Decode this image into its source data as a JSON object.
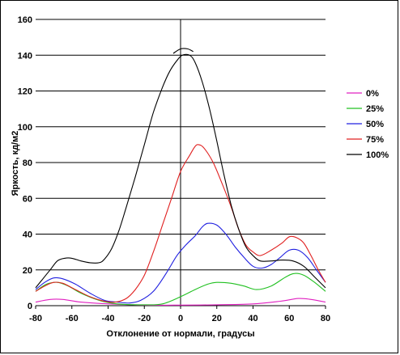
{
  "chart_data": {
    "type": "line",
    "title": "",
    "xlabel": "Отклонение от нормали, градусы",
    "ylabel": "Яркость, кд/м2",
    "xlim": [
      -80,
      80
    ],
    "ylim": [
      0,
      160
    ],
    "xticks": [
      -80,
      -60,
      -40,
      -20,
      0,
      20,
      40,
      60,
      80
    ],
    "yticks": [
      0,
      20,
      40,
      60,
      80,
      100,
      120,
      140,
      160
    ],
    "grid": "horizontal",
    "legend_position": "right",
    "series": [
      {
        "name": "0%",
        "color": "#e020c0",
        "points": [
          [
            -80,
            2
          ],
          [
            -72,
            3.5
          ],
          [
            -65,
            3.5
          ],
          [
            -55,
            2
          ],
          [
            -40,
            1
          ],
          [
            -20,
            0.3
          ],
          [
            0,
            0.3
          ],
          [
            20,
            0.5
          ],
          [
            40,
            1
          ],
          [
            55,
            2.5
          ],
          [
            65,
            4
          ],
          [
            72,
            3.5
          ],
          [
            80,
            2
          ]
        ]
      },
      {
        "name": "25%",
        "color": "#20c020",
        "points": [
          [
            -80,
            8
          ],
          [
            -74,
            12
          ],
          [
            -68,
            13
          ],
          [
            -62,
            11
          ],
          [
            -55,
            7
          ],
          [
            -45,
            3
          ],
          [
            -35,
            1
          ],
          [
            -20,
            0.5
          ],
          [
            -10,
            1
          ],
          [
            0,
            5
          ],
          [
            8,
            9
          ],
          [
            15,
            12
          ],
          [
            20,
            13
          ],
          [
            28,
            12.5
          ],
          [
            35,
            11
          ],
          [
            42,
            9
          ],
          [
            50,
            11
          ],
          [
            58,
            16
          ],
          [
            63,
            18
          ],
          [
            68,
            17
          ],
          [
            74,
            13
          ],
          [
            80,
            8
          ]
        ]
      },
      {
        "name": "50%",
        "color": "#2020e0",
        "points": [
          [
            -80,
            9
          ],
          [
            -75,
            13
          ],
          [
            -70,
            15.5
          ],
          [
            -65,
            15
          ],
          [
            -58,
            12
          ],
          [
            -50,
            7
          ],
          [
            -42,
            3
          ],
          [
            -35,
            2
          ],
          [
            -28,
            1.5
          ],
          [
            -22,
            3
          ],
          [
            -15,
            8
          ],
          [
            -8,
            18
          ],
          [
            -2,
            28
          ],
          [
            3,
            34
          ],
          [
            8,
            39
          ],
          [
            12,
            44
          ],
          [
            15,
            46
          ],
          [
            20,
            45
          ],
          [
            25,
            40
          ],
          [
            30,
            33
          ],
          [
            35,
            27
          ],
          [
            40,
            22
          ],
          [
            45,
            21
          ],
          [
            50,
            23
          ],
          [
            55,
            27
          ],
          [
            60,
            31
          ],
          [
            65,
            31
          ],
          [
            70,
            27
          ],
          [
            75,
            20
          ],
          [
            80,
            13
          ]
        ]
      },
      {
        "name": "75%",
        "color": "#e02020",
        "points": [
          [
            -80,
            8
          ],
          [
            -75,
            11
          ],
          [
            -70,
            13
          ],
          [
            -65,
            12.5
          ],
          [
            -58,
            9
          ],
          [
            -50,
            5
          ],
          [
            -42,
            2.5
          ],
          [
            -36,
            2
          ],
          [
            -30,
            4
          ],
          [
            -25,
            9
          ],
          [
            -20,
            17
          ],
          [
            -15,
            30
          ],
          [
            -10,
            45
          ],
          [
            -5,
            60
          ],
          [
            0,
            75
          ],
          [
            5,
            84
          ],
          [
            8,
            89
          ],
          [
            10,
            90
          ],
          [
            13,
            88
          ],
          [
            18,
            80
          ],
          [
            23,
            68
          ],
          [
            28,
            55
          ],
          [
            32,
            43
          ],
          [
            36,
            34
          ],
          [
            40,
            30
          ],
          [
            44,
            28
          ],
          [
            50,
            31
          ],
          [
            56,
            35
          ],
          [
            60,
            38.5
          ],
          [
            64,
            38
          ],
          [
            68,
            35
          ],
          [
            72,
            28
          ],
          [
            76,
            20
          ],
          [
            80,
            13
          ]
        ]
      },
      {
        "name": "100%",
        "color": "#000000",
        "points": [
          [
            -80,
            10
          ],
          [
            -76,
            15
          ],
          [
            -72,
            20
          ],
          [
            -68,
            25
          ],
          [
            -64,
            26.5
          ],
          [
            -60,
            26.5
          ],
          [
            -55,
            25
          ],
          [
            -50,
            24
          ],
          [
            -45,
            24
          ],
          [
            -42,
            26
          ],
          [
            -38,
            32
          ],
          [
            -34,
            42
          ],
          [
            -30,
            55
          ],
          [
            -25,
            72
          ],
          [
            -20,
            90
          ],
          [
            -15,
            108
          ],
          [
            -10,
            122
          ],
          [
            -6,
            131
          ],
          [
            -2,
            137
          ],
          [
            1,
            140
          ],
          [
            5,
            140
          ],
          [
            8,
            136
          ],
          [
            12,
            125
          ],
          [
            16,
            110
          ],
          [
            20,
            92
          ],
          [
            24,
            73
          ],
          [
            28,
            56
          ],
          [
            32,
            43
          ],
          [
            36,
            33
          ],
          [
            40,
            28
          ],
          [
            44,
            25
          ],
          [
            50,
            25
          ],
          [
            56,
            25.5
          ],
          [
            62,
            25
          ],
          [
            68,
            22
          ],
          [
            74,
            16
          ],
          [
            80,
            10
          ]
        ]
      }
    ],
    "annotation_arc": {
      "color": "#000000",
      "points": [
        [
          -4,
          141
        ],
        [
          0,
          143.5
        ],
        [
          4,
          143.5
        ],
        [
          7,
          142
        ]
      ]
    }
  }
}
